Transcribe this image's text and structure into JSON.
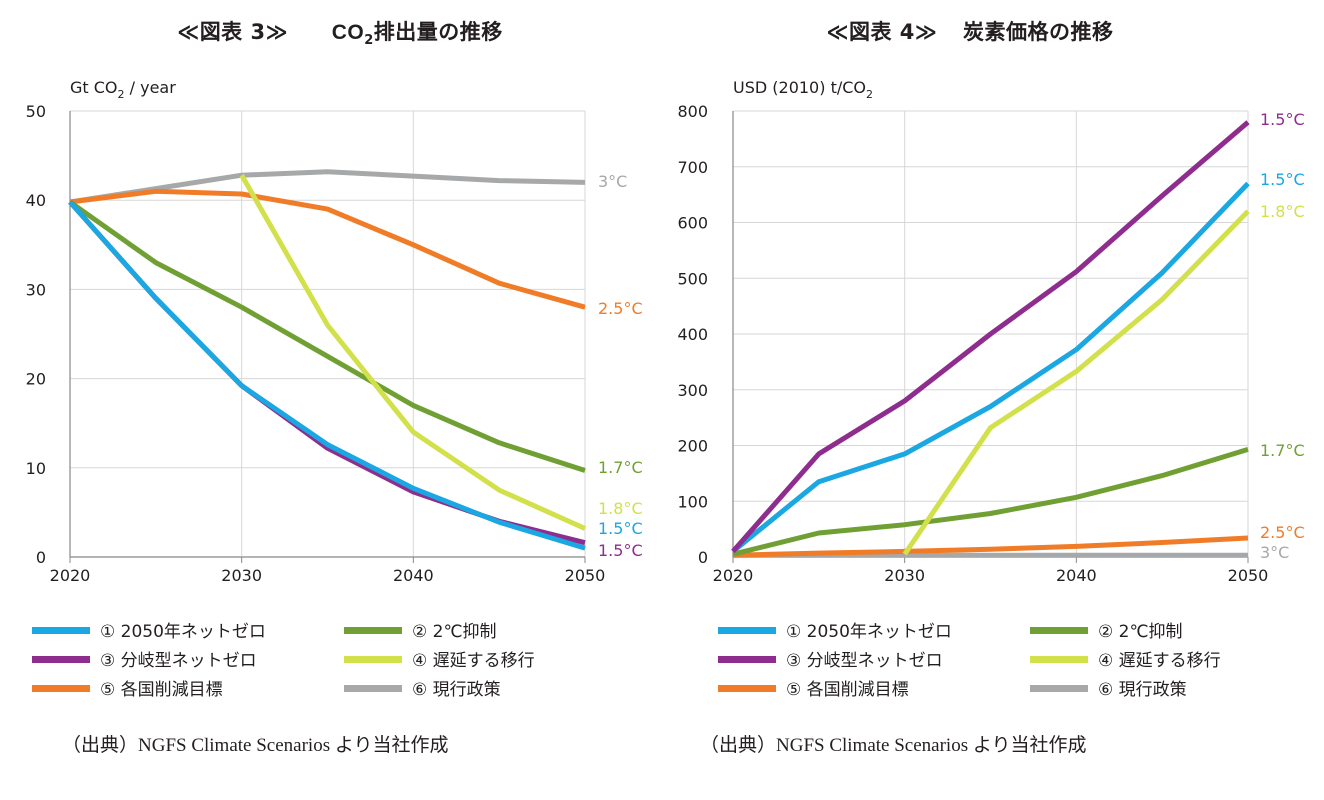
{
  "figures": [
    {
      "title_prefix": "≪図表 3≫",
      "title_main": "CO",
      "title_sub": "2",
      "title_suffix": "排出量の推移",
      "unit_main": "Gt CO",
      "unit_sub": "2",
      "unit_suffix": " / year",
      "source": "（出典）NGFS Climate Scenarios より当社作成"
    },
    {
      "title_prefix": "≪図表 4≫",
      "title_main": "炭素価格の推移",
      "unit_main": "USD (2010) t/CO",
      "unit_sub": "2",
      "unit_suffix": "",
      "source": "（出典）NGFS Climate Scenarios より当社作成"
    }
  ],
  "colors": {
    "net_zero_2050": "#1aa7e2",
    "below_2c": "#70a033",
    "divergent_net_zero": "#8e2d8e",
    "delayed_transition": "#d2e14b",
    "ndcs": "#f07c28",
    "current_policies": "#a6a8a9"
  },
  "legend": [
    {
      "key": "net_zero_2050",
      "label": "① 2050年ネットゼロ"
    },
    {
      "key": "below_2c",
      "label": "② 2℃抑制"
    },
    {
      "key": "divergent_net_zero",
      "label": "③ 分岐型ネットゼロ"
    },
    {
      "key": "delayed_transition",
      "label": "④ 遅延する移行"
    },
    {
      "key": "ndcs",
      "label": "⑤ 各国削減目標"
    },
    {
      "key": "current_policies",
      "label": "⑥ 現行政策"
    }
  ],
  "chart_data": [
    {
      "type": "line",
      "title": "CO2排出量の推移",
      "ylabel": "Gt CO2 / year",
      "xlim": [
        2020,
        2050
      ],
      "ylim": [
        0,
        50
      ],
      "x_ticks": [
        "2020",
        "2030",
        "2040",
        "2050"
      ],
      "y_ticks": [
        "0",
        "10",
        "20",
        "30",
        "40",
        "50"
      ],
      "grid": true,
      "series": [
        {
          "key": "current_policies",
          "x": [
            2020,
            2025,
            2030,
            2035,
            2040,
            2045,
            2050
          ],
          "y": [
            39.8,
            41.3,
            42.8,
            43.2,
            42.7,
            42.2,
            42.0
          ],
          "end_label": "3°C"
        },
        {
          "key": "ndcs",
          "x": [
            2020,
            2025,
            2030,
            2035,
            2040,
            2045,
            2050
          ],
          "y": [
            39.8,
            41.0,
            40.7,
            39.0,
            35.0,
            30.7,
            28.0
          ],
          "end_label": "2.5°C"
        },
        {
          "key": "below_2c",
          "x": [
            2020,
            2025,
            2030,
            2035,
            2040,
            2045,
            2050
          ],
          "y": [
            39.8,
            33.0,
            28.0,
            22.5,
            17.0,
            12.8,
            9.7
          ],
          "end_label": "1.7°C"
        },
        {
          "key": "delayed_transition",
          "x": [
            2030,
            2035,
            2040,
            2045,
            2050
          ],
          "y": [
            42.8,
            26.0,
            14.0,
            7.5,
            3.2
          ],
          "end_label": "1.8°C"
        },
        {
          "key": "divergent_net_zero",
          "x": [
            2020,
            2025,
            2030,
            2035,
            2040,
            2045,
            2050
          ],
          "y": [
            39.8,
            29.0,
            19.2,
            12.2,
            7.3,
            4.0,
            1.6
          ],
          "end_label": "1.5°C"
        },
        {
          "key": "net_zero_2050",
          "x": [
            2020,
            2025,
            2030,
            2035,
            2040,
            2045,
            2050
          ],
          "y": [
            39.8,
            29.0,
            19.2,
            12.6,
            7.7,
            3.9,
            1.0
          ],
          "end_label": "1.5°C"
        }
      ]
    },
    {
      "type": "line",
      "title": "炭素価格の推移",
      "ylabel": "USD (2010) t/CO2",
      "xlim": [
        2020,
        2050
      ],
      "ylim": [
        0,
        800
      ],
      "x_ticks": [
        "2020",
        "2030",
        "2040",
        "2050"
      ],
      "y_ticks": [
        "0",
        "100",
        "200",
        "300",
        "400",
        "500",
        "600",
        "700",
        "800"
      ],
      "grid": true,
      "series": [
        {
          "key": "current_policies",
          "x": [
            2020,
            2025,
            2030,
            2035,
            2040,
            2045,
            2050
          ],
          "y": [
            3,
            3,
            3,
            3,
            3,
            3,
            3
          ],
          "end_label": "3°C"
        },
        {
          "key": "ndcs",
          "x": [
            2020,
            2025,
            2030,
            2035,
            2040,
            2045,
            2050
          ],
          "y": [
            3,
            7,
            10,
            14,
            19,
            26,
            34
          ],
          "end_label": "2.5°C"
        },
        {
          "key": "below_2c",
          "x": [
            2020,
            2025,
            2030,
            2035,
            2040,
            2045,
            2050
          ],
          "y": [
            5,
            43,
            58,
            78,
            107,
            146,
            193
          ],
          "end_label": "1.7°C"
        },
        {
          "key": "delayed_transition",
          "x": [
            2030,
            2035,
            2040,
            2045,
            2050
          ],
          "y": [
            5,
            232,
            333,
            462,
            620
          ],
          "end_label": "1.8°C"
        },
        {
          "key": "net_zero_2050",
          "x": [
            2020,
            2025,
            2030,
            2035,
            2040,
            2045,
            2050
          ],
          "y": [
            10,
            135,
            185,
            270,
            372,
            510,
            670
          ],
          "end_label": "1.5°C"
        },
        {
          "key": "divergent_net_zero",
          "x": [
            2020,
            2025,
            2030,
            2035,
            2040,
            2045,
            2050
          ],
          "y": [
            10,
            185,
            280,
            400,
            512,
            648,
            780
          ],
          "end_label": "1.5°C"
        }
      ]
    }
  ]
}
